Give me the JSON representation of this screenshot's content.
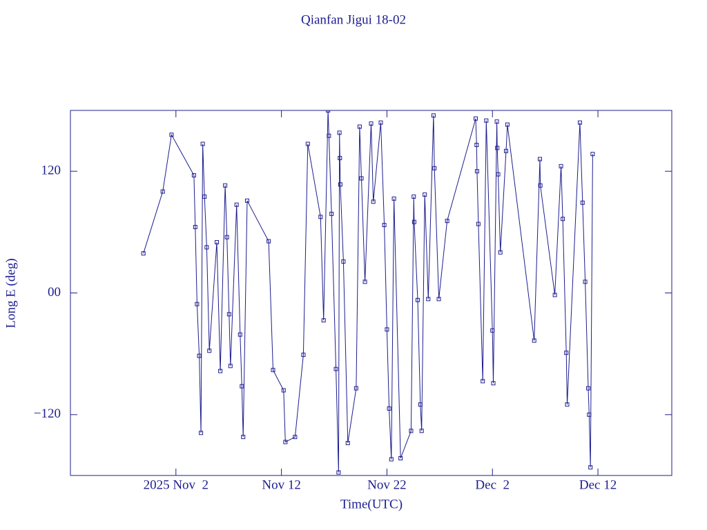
{
  "chart_data": {
    "type": "line",
    "title": "Qianfan Jigui 18-02",
    "x_label": "Time(UTC)",
    "y_label": "Long E (deg)",
    "color": "#1c1c8f",
    "xlim": [
      "2025-10-23T00:00Z",
      "2025-12-19T00:00Z"
    ],
    "xticks": [
      {
        "value": "2025-11-02",
        "label": "2025 Nov  2"
      },
      {
        "value": "2025-11-12",
        "label": "Nov 12"
      },
      {
        "value": "2025-11-22",
        "label": "Nov 22"
      },
      {
        "value": "2025-12-02",
        "label": "Dec  2"
      },
      {
        "value": "2025-12-12",
        "label": "Dec 12"
      }
    ],
    "ylim": [
      -180,
      180
    ],
    "yticks": [
      120,
      {
        "value": 0,
        "label": "00"
      },
      {
        "value": -120,
        "label": "−120"
      }
    ],
    "x": [
      "2025-10-29T22:00Z",
      "2025-10-31T18:00Z",
      "2025-11-01T14:00Z",
      "2025-11-03T17:00Z",
      "2025-11-03T20:00Z",
      "2025-11-04T00:00Z",
      "2025-11-04T05:00Z",
      "2025-11-04T09:00Z",
      "2025-11-04T13:00Z",
      "2025-11-04T17:00Z",
      "2025-11-04T22:00Z",
      "2025-11-05T04:00Z",
      "2025-11-05T21:00Z",
      "2025-11-06T05:00Z",
      "2025-11-06T16:00Z",
      "2025-11-06T20:00Z",
      "2025-11-07T01:00Z",
      "2025-11-07T04:00Z",
      "2025-11-07T18:00Z",
      "2025-11-08T02:00Z",
      "2025-11-08T06:00Z",
      "2025-11-08T09:00Z",
      "2025-11-08T18:00Z",
      "2025-11-10T19:00Z",
      "2025-11-11T05:00Z",
      "2025-11-12T05:00Z",
      "2025-11-12T09:00Z",
      "2025-11-13T07:00Z",
      "2025-11-14T02:00Z",
      "2025-11-14T12:00Z",
      "2025-11-15T17:00Z",
      "2025-11-16T00:00Z",
      "2025-11-16T10:00Z",
      "2025-11-16T12:00Z",
      "2025-11-16T18:00Z",
      "2025-11-17T04:00Z",
      "2025-11-17T10:00Z",
      "2025-11-17T12:00Z",
      "2025-11-17T13:00Z",
      "2025-11-17T14:00Z",
      "2025-11-17T21:00Z",
      "2025-11-18T07:00Z",
      "2025-11-19T02:00Z",
      "2025-11-19T10:00Z",
      "2025-11-19T14:00Z",
      "2025-11-19T22:00Z",
      "2025-11-20T12:00Z",
      "2025-11-20T17:00Z",
      "2025-11-21T10:00Z",
      "2025-11-21T18:00Z",
      "2025-11-22T00:00Z",
      "2025-11-22T05:00Z",
      "2025-11-22T10:00Z",
      "2025-11-22T16:00Z",
      "2025-11-23T07:00Z",
      "2025-11-24T07:00Z",
      "2025-11-24T13:00Z",
      "2025-11-24T14:00Z",
      "2025-11-24T22:00Z",
      "2025-11-25T04:00Z",
      "2025-11-25T07:00Z",
      "2025-11-25T14:00Z",
      "2025-11-25T22:00Z",
      "2025-11-26T10:00Z",
      "2025-11-26T12:00Z",
      "2025-11-26T22:00Z",
      "2025-11-27T17:00Z",
      "2025-11-30T10:00Z",
      "2025-11-30T12:00Z",
      "2025-11-30T13:00Z",
      "2025-11-30T16:00Z",
      "2025-12-01T02:00Z",
      "2025-12-01T10:00Z",
      "2025-12-02T00:00Z",
      "2025-12-02T02:00Z",
      "2025-12-02T10:00Z",
      "2025-12-02T11:00Z",
      "2025-12-02T13:00Z",
      "2025-12-02T18:00Z",
      "2025-12-03T07:00Z",
      "2025-12-03T10:00Z",
      "2025-12-05T23:00Z",
      "2025-12-06T12:00Z",
      "2025-12-06T13:00Z",
      "2025-12-07T22:00Z",
      "2025-12-08T12:00Z",
      "2025-12-08T16:00Z",
      "2025-12-09T00:00Z",
      "2025-12-09T02:00Z",
      "2025-12-10T07:00Z",
      "2025-12-10T13:00Z",
      "2025-12-10T19:00Z",
      "2025-12-11T02:00Z",
      "2025-12-11T04:00Z",
      "2025-12-11T07:00Z",
      "2025-12-11T12:00Z"
    ],
    "values": [
      39,
      100,
      156,
      116,
      65,
      -11,
      -62,
      -138,
      147,
      95,
      45,
      -57,
      50,
      -77,
      106,
      55,
      -21,
      -72,
      87,
      -41,
      -92,
      -142,
      91,
      51,
      -76,
      -96,
      -147,
      -142,
      -61,
      147,
      75,
      -27,
      180,
      155,
      78,
      -75,
      -177,
      158,
      133,
      107,
      31,
      -148,
      -94,
      164,
      113,
      11,
      167,
      90,
      168,
      67,
      -36,
      -114,
      -164,
      93,
      -163,
      -136,
      95,
      70,
      -7,
      -110,
      -136,
      97,
      -6,
      175,
      123,
      -6,
      71,
      172,
      146,
      120,
      68,
      -87,
      170,
      -37,
      -89,
      169,
      143,
      117,
      40,
      140,
      166,
      -47,
      132,
      106,
      -2,
      125,
      73,
      -59,
      -110,
      168,
      89,
      11,
      -94,
      -120,
      -172,
      137
    ]
  }
}
